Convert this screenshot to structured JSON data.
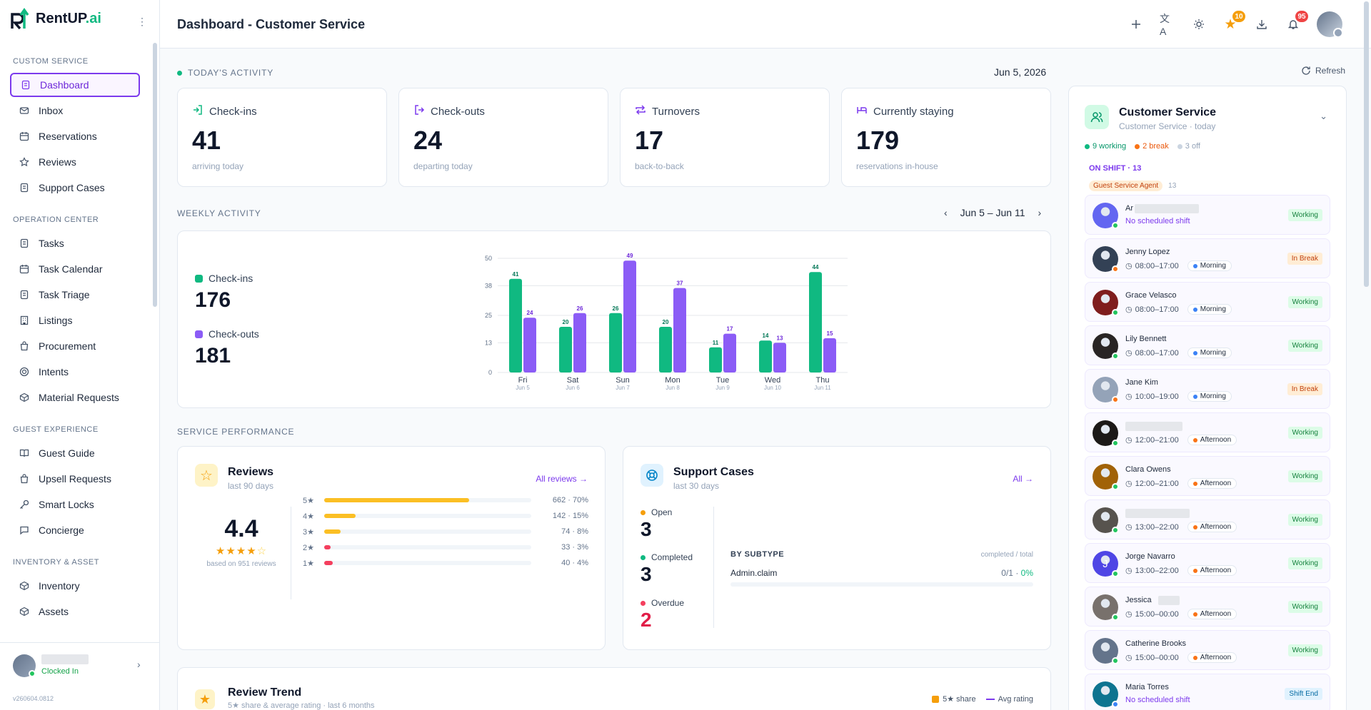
{
  "brand": {
    "name": "RentUP",
    "suffix": ".ai"
  },
  "sidebar": {
    "sections": [
      {
        "title": "CUSTOM SERVICE",
        "items": [
          {
            "label": "Dashboard",
            "icon": "doc-icon",
            "active": true
          },
          {
            "label": "Inbox",
            "icon": "mail-icon"
          },
          {
            "label": "Reservations",
            "icon": "calendar-icon"
          },
          {
            "label": "Reviews",
            "icon": "star-icon"
          },
          {
            "label": "Support Cases",
            "icon": "doc-icon"
          }
        ]
      },
      {
        "title": "OPERATION CENTER",
        "items": [
          {
            "label": "Tasks",
            "icon": "doc-icon"
          },
          {
            "label": "Task Calendar",
            "icon": "calendar-icon"
          },
          {
            "label": "Task Triage",
            "icon": "doc-icon"
          },
          {
            "label": "Listings",
            "icon": "building-icon"
          },
          {
            "label": "Procurement",
            "icon": "bag-icon"
          },
          {
            "label": "Intents",
            "icon": "target-icon"
          },
          {
            "label": "Material Requests",
            "icon": "box-icon"
          }
        ]
      },
      {
        "title": "GUEST EXPERIENCE",
        "items": [
          {
            "label": "Guest Guide",
            "icon": "book-icon"
          },
          {
            "label": "Upsell Requests",
            "icon": "bag-icon"
          },
          {
            "label": "Smart Locks",
            "icon": "key-icon"
          },
          {
            "label": "Concierge",
            "icon": "chat-icon"
          }
        ]
      },
      {
        "title": "INVENTORY & ASSET",
        "items": [
          {
            "label": "Inventory",
            "icon": "box-icon"
          },
          {
            "label": "Assets",
            "icon": "box-icon"
          }
        ]
      }
    ],
    "user": {
      "status": "Clocked In"
    },
    "version": "v260604.0812"
  },
  "header": {
    "title": "Dashboard - Customer Service",
    "favorites_badge": "10",
    "notifications_badge": "95"
  },
  "today": {
    "label": "TODAY'S ACTIVITY",
    "date": "Jun 5, 2026",
    "refresh": "Refresh",
    "stats": [
      {
        "label": "Check-ins",
        "value": "41",
        "sub": "arriving today",
        "icon": "login-icon",
        "color": "#10b981"
      },
      {
        "label": "Check-outs",
        "value": "24",
        "sub": "departing today",
        "icon": "logout-icon",
        "color": "#7c3aed"
      },
      {
        "label": "Turnovers",
        "value": "17",
        "sub": "back-to-back",
        "icon": "repeat-icon",
        "color": "#7c3aed"
      },
      {
        "label": "Currently staying",
        "value": "179",
        "sub": "reservations in-house",
        "icon": "bed-icon",
        "color": "#7c3aed"
      }
    ]
  },
  "weekly": {
    "label": "WEEKLY ACTIVITY",
    "range": "Jun 5 – Jun 11",
    "checkins_label": "Check-ins",
    "checkins_total": "176",
    "checkouts_label": "Check-outs",
    "checkouts_total": "181"
  },
  "chart_data": {
    "type": "bar",
    "categories": [
      "Fri",
      "Sat",
      "Sun",
      "Mon",
      "Tue",
      "Wed",
      "Thu"
    ],
    "sublabels": [
      "Jun 5",
      "Jun 6",
      "Jun 7",
      "Jun 8",
      "Jun 9",
      "Jun 10",
      "Jun 11"
    ],
    "series": [
      {
        "name": "Check-ins",
        "values": [
          41,
          20,
          26,
          20,
          11,
          14,
          44
        ],
        "color": "#10b981"
      },
      {
        "name": "Check-outs",
        "values": [
          24,
          26,
          49,
          37,
          17,
          13,
          15
        ],
        "color": "#8b5cf6"
      }
    ],
    "yticks": [
      0,
      13,
      25,
      38,
      50
    ],
    "ylim": [
      0,
      50
    ],
    "grid": true
  },
  "service": {
    "label": "SERVICE PERFORMANCE"
  },
  "reviews": {
    "title": "Reviews",
    "sub": "last 90 days",
    "link": "All reviews →",
    "rating": "4.4",
    "based": "based on 951 reviews",
    "rows": [
      {
        "star": "5★",
        "count": "662 · 70%",
        "pct": 70,
        "color": "#fbbf24"
      },
      {
        "star": "4★",
        "count": "142 · 15%",
        "pct": 15,
        "color": "#fbbf24"
      },
      {
        "star": "3★",
        "count": "74 · 8%",
        "pct": 8,
        "color": "#fbbf24"
      },
      {
        "star": "2★",
        "count": "33 · 3%",
        "pct": 3,
        "color": "#f43f5e"
      },
      {
        "star": "1★",
        "count": "40 · 4%",
        "pct": 4,
        "color": "#f43f5e"
      }
    ]
  },
  "cases": {
    "title": "Support Cases",
    "sub": "last 30 days",
    "link": "All →",
    "open_label": "Open",
    "open": "3",
    "completed_label": "Completed",
    "completed": "3",
    "overdue_label": "Overdue",
    "overdue": "2",
    "subtype_title": "BY SUBTYPE",
    "subtype_hint": "completed / total",
    "subtype_name": "Admin.claim",
    "subtype_val": "0/1 · ",
    "subtype_pct": "0%"
  },
  "trend": {
    "title": "Review Trend",
    "sub": "5★ share & average rating · last 6 months",
    "legend_share": "5★ share",
    "legend_avg": "Avg rating"
  },
  "team": {
    "title": "Customer Service",
    "sub": "Customer Service · today",
    "working": "9 working",
    "break": "2 break",
    "off": "3 off",
    "onshift": "ON SHIFT · 13",
    "role": "Guest Service Agent",
    "role_count": "13",
    "agents": [
      {
        "name": "Ar",
        "blur_w": 90,
        "time": "",
        "pill": "",
        "status": "Working",
        "noshift": "No scheduled shift",
        "dot": "#22c55e",
        "av": "#6366f1"
      },
      {
        "name": "Jenny Lopez",
        "time": "08:00–17:00",
        "pill": "Morning",
        "pillc": "#3b82f6",
        "status": "In Break",
        "dot": "#f97316",
        "av": "#334155"
      },
      {
        "name": "Grace Velasco",
        "time": "08:00–17:00",
        "pill": "Morning",
        "pillc": "#3b82f6",
        "status": "Working",
        "dot": "#22c55e",
        "av": "#7f1d1d"
      },
      {
        "name": "Lily Bennett",
        "time": "08:00–17:00",
        "pill": "Morning",
        "pillc": "#3b82f6",
        "status": "Working",
        "dot": "#22c55e",
        "av": "#292524"
      },
      {
        "name": "Jane Kim",
        "time": "10:00–19:00",
        "pill": "Morning",
        "pillc": "#3b82f6",
        "status": "In Break",
        "dot": "#f97316",
        "av": "#94a3b8"
      },
      {
        "name": "",
        "blur_w": 80,
        "time": "12:00–21:00",
        "pill": "Afternoon",
        "pillc": "#f97316",
        "status": "Working",
        "dot": "#22c55e",
        "av": "#1c1917"
      },
      {
        "name": "Clara Owens",
        "time": "12:00–21:00",
        "pill": "Afternoon",
        "pillc": "#f97316",
        "status": "Working",
        "dot": "#22c55e",
        "av": "#a16207"
      },
      {
        "name": "",
        "blur_w": 90,
        "time": "13:00–22:00",
        "pill": "Afternoon",
        "pillc": "#f97316",
        "status": "Working",
        "dot": "#22c55e",
        "av": "#57534e"
      },
      {
        "name": "Jorge Navarro",
        "initial": "J",
        "time": "13:00–22:00",
        "pill": "Afternoon",
        "pillc": "#f97316",
        "status": "Working",
        "dot": "#22c55e",
        "av": "#4f46e5"
      },
      {
        "name": "Jessica",
        "blur_w": 30,
        "time": "15:00–00:00",
        "pill": "Afternoon",
        "pillc": "#f97316",
        "status": "Working",
        "dot": "#22c55e",
        "av": "#78716c"
      },
      {
        "name": "Catherine Brooks",
        "time": "15:00–00:00",
        "pill": "Afternoon",
        "pillc": "#f97316",
        "status": "Working",
        "dot": "#22c55e",
        "av": "#64748b"
      },
      {
        "name": "Maria Torres",
        "time": "",
        "pill": "",
        "status": "Shift End",
        "noshift": "No scheduled shift",
        "dot": "#3b82f6",
        "av": "#0e7490"
      }
    ]
  }
}
